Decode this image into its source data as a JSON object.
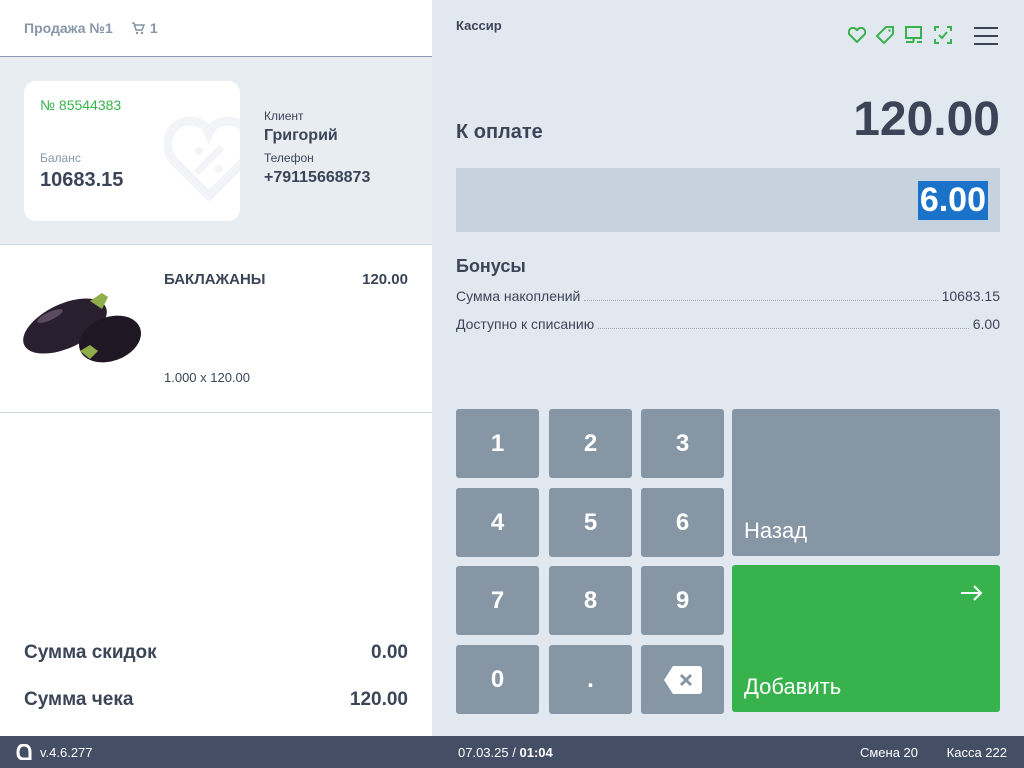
{
  "sale": {
    "title": "Продажа №1",
    "cart_count": "1"
  },
  "customer": {
    "card_number": "№ 85544383",
    "balance_label": "Баланс",
    "balance": "10683.15",
    "client_label": "Клиент",
    "client_name": "Григорий",
    "phone_label": "Телефон",
    "phone": "+79115668873"
  },
  "items": [
    {
      "name": "БАКЛАЖАНЫ",
      "price": "120.00",
      "qty_line": "1.000 x 120.00"
    }
  ],
  "totals": {
    "discount_label": "Сумма скидок",
    "discount": "0.00",
    "check_label": "Сумма чека",
    "check": "120.00"
  },
  "header": {
    "role": "Кассир",
    "icons": [
      "heart-icon",
      "tag-icon",
      "monitor-icon",
      "scan-check-icon"
    ],
    "accent": "#37b24d"
  },
  "payment": {
    "label": "К оплате",
    "amount": "120.00",
    "input_value": "6.00"
  },
  "bonuses": {
    "title": "Бонусы",
    "rows": [
      {
        "label": "Сумма накоплений",
        "value": "10683.15"
      },
      {
        "label": "Доступно к списанию",
        "value": "6.00"
      }
    ]
  },
  "keypad": {
    "keys": [
      "1",
      "2",
      "3",
      "4",
      "5",
      "6",
      "7",
      "8",
      "9",
      "0",
      "."
    ],
    "back": "Назад",
    "add": "Добавить"
  },
  "footer": {
    "version": "v.4.6.277",
    "date": "07.03.25",
    "sep": "/",
    "time": "01:04",
    "shift": "Смена 20",
    "register": "Касса 222"
  }
}
